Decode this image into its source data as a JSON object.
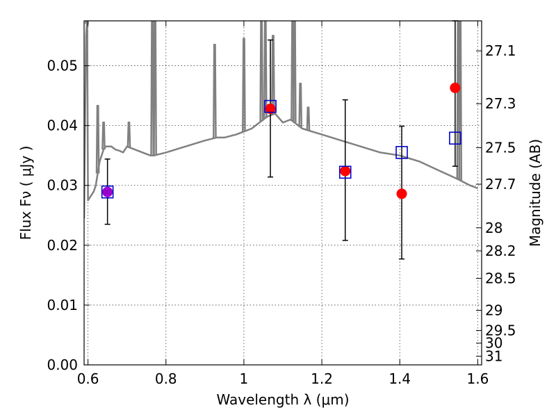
{
  "chart_data": {
    "type": "scatter",
    "xlabel": "Wavelength  λ (μm)",
    "ylabel": "Flux  Fν  ( μJy )",
    "y2label": "Magnitude (AB)",
    "xlim": [
      0.59,
      1.61
    ],
    "ylim": [
      0.0,
      0.0575
    ],
    "grid": true,
    "x_ticks": [
      0.6,
      0.8,
      1.0,
      1.2,
      1.4,
      1.6
    ],
    "x_tick_labels": [
      "0.6",
      "0.8",
      "1",
      "1.2",
      "1.4",
      "1.6"
    ],
    "y_ticks": [
      0.0,
      0.01,
      0.02,
      0.03,
      0.04,
      0.05
    ],
    "y_tick_labels": [
      "0.00",
      "0.01",
      "0.02",
      "0.03",
      "0.04",
      "0.05"
    ],
    "mag_ticks": [
      "27.1",
      "27.3",
      "27.5",
      "27.7",
      "28",
      "28.2",
      "28.5",
      "29",
      "29.5",
      "30",
      "31"
    ],
    "colors": {
      "model": "#808080",
      "observed": "#ff0000",
      "model_photometry": "#0000cc",
      "errorbar": "#000000",
      "overlap": "#9900cc"
    },
    "series": [
      {
        "name": "model spectrum",
        "style": "line",
        "x": [
          0.59,
          0.595,
          0.598,
          0.6,
          0.605,
          0.61,
          0.615,
          0.62,
          0.625,
          0.63,
          0.635,
          0.64,
          0.645,
          0.65,
          0.66,
          0.67,
          0.68,
          0.69,
          0.7,
          0.72,
          0.74,
          0.76,
          0.77,
          0.8,
          0.85,
          0.9,
          0.93,
          0.95,
          0.98,
          1.0,
          1.02,
          1.04,
          1.06,
          1.08,
          1.1,
          1.12,
          1.15,
          1.2,
          1.25,
          1.3,
          1.35,
          1.4,
          1.45,
          1.5,
          1.55,
          1.58,
          1.6
        ],
        "y": [
          0.0245,
          0.055,
          0.058,
          0.0275,
          0.028,
          0.0285,
          0.029,
          0.03,
          0.032,
          0.034,
          0.035,
          0.036,
          0.0365,
          0.0365,
          0.0365,
          0.036,
          0.0358,
          0.0355,
          0.0365,
          0.036,
          0.0355,
          0.035,
          0.035,
          0.0355,
          0.0365,
          0.0375,
          0.038,
          0.038,
          0.0385,
          0.039,
          0.0395,
          0.0405,
          0.0415,
          0.042,
          0.0405,
          0.041,
          0.0395,
          0.0385,
          0.0375,
          0.0365,
          0.0355,
          0.035,
          0.034,
          0.0325,
          0.031,
          0.03,
          0.0295
        ]
      },
      {
        "name": "model spectrum emission lines",
        "style": "spikes",
        "x": [
          0.597,
          0.625,
          0.64,
          0.705,
          0.765,
          0.772,
          0.925,
          1.0,
          1.045,
          1.055,
          1.075,
          1.125,
          1.13,
          1.145,
          1.165,
          1.55,
          1.555
        ],
        "y": [
          0.058,
          0.0433,
          0.0405,
          0.0405,
          0.058,
          0.058,
          0.0535,
          0.0545,
          0.058,
          0.058,
          0.055,
          0.058,
          0.058,
          0.047,
          0.043,
          0.058,
          0.058
        ]
      },
      {
        "name": "observed flux",
        "style": "points",
        "x": [
          0.65,
          1.068,
          1.26,
          1.405,
          1.542
        ],
        "y": [
          0.0289,
          0.0428,
          0.0324,
          0.0286,
          0.0463
        ],
        "yerr_low": [
          0.0235,
          0.0314,
          0.0208,
          0.0177,
          0.0332
        ],
        "yerr_high": [
          0.0344,
          0.0543,
          0.0443,
          0.0399,
          0.0575
        ]
      },
      {
        "name": "model photometry",
        "style": "open-squares",
        "x": [
          0.65,
          1.068,
          1.26,
          1.405,
          1.542
        ],
        "y": [
          0.0289,
          0.0432,
          0.0322,
          0.0355,
          0.0379
        ]
      }
    ]
  }
}
